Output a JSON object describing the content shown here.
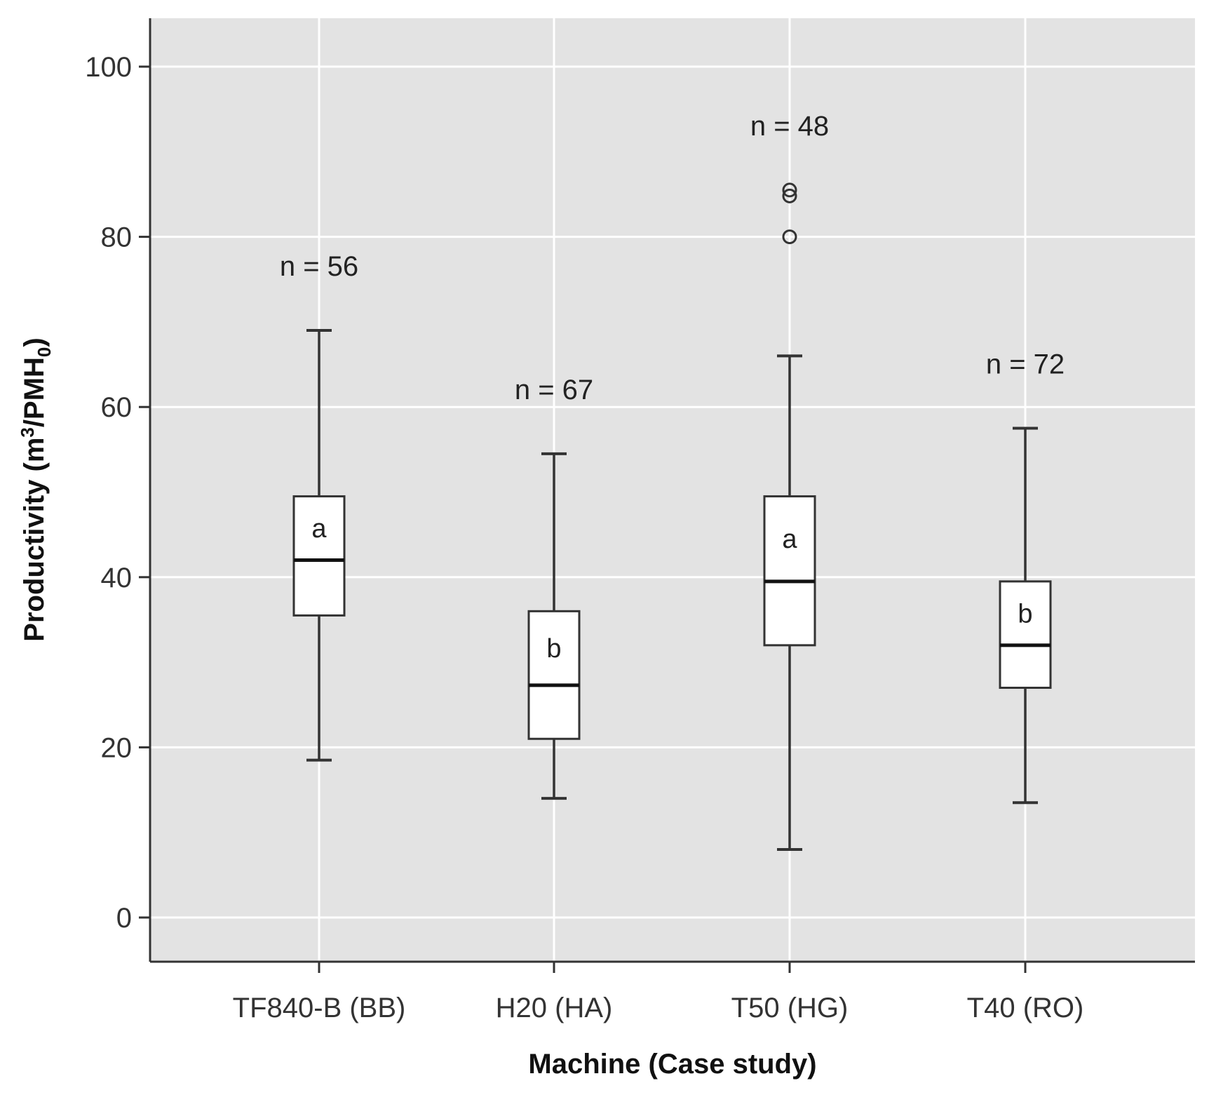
{
  "chart_data": {
    "type": "box",
    "title": "",
    "xlabel": "Machine (Case study)",
    "ylabel_main": "Productivity (m",
    "ylabel_sup": "3",
    "ylabel_mid": "/PMH",
    "ylabel_sub": "0",
    "ylabel_end": ")",
    "ylim": [
      -5.5,
      105
    ],
    "yticks": [
      0,
      20,
      40,
      60,
      80,
      100
    ],
    "ytick_labels": [
      "0",
      "20",
      "40",
      "60",
      "80",
      "100"
    ],
    "grid": true,
    "categories": [
      "TF840-B (BB)",
      "H20 (HA)",
      "T50 (HG)",
      "T40 (RO)"
    ],
    "boxes": [
      {
        "category": "TF840-B (BB)",
        "whisker_low": 18.5,
        "q1": 35.5,
        "median": 42,
        "q3": 49.5,
        "whisker_high": 69,
        "outliers": [],
        "n_label": "n = 56",
        "group": "a"
      },
      {
        "category": "H20 (HA)",
        "whisker_low": 14,
        "q1": 21,
        "median": 27.3,
        "q3": 36,
        "whisker_high": 54.5,
        "outliers": [],
        "n_label": "n = 67",
        "group": "b"
      },
      {
        "category": "T50 (HG)",
        "whisker_low": 8,
        "q1": 32,
        "median": 39.5,
        "q3": 49.5,
        "whisker_high": 66,
        "outliers": [
          80,
          84.8,
          85.5
        ],
        "n_label": "n = 48",
        "group": "a"
      },
      {
        "category": "T40 (RO)",
        "whisker_low": 13.5,
        "q1": 27,
        "median": 32,
        "q3": 39.5,
        "whisker_high": 57.5,
        "outliers": [],
        "n_label": "n = 72",
        "group": "b"
      }
    ]
  },
  "colors": {
    "panel_bg": "#e3e3e3",
    "grid": "#ffffff",
    "box_fill": "#ffffff",
    "stroke": "#333333"
  }
}
